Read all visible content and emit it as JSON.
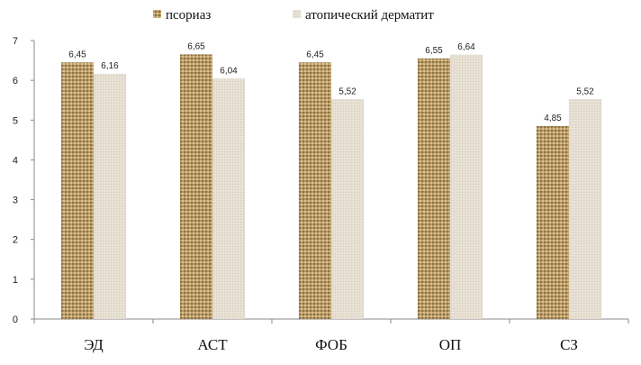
{
  "chart_data": {
    "type": "bar",
    "categories": [
      "ЭД",
      "АСТ",
      "ФОБ",
      "ОП",
      "СЗ"
    ],
    "series": [
      {
        "name": "псориаз",
        "values": [
          6.45,
          6.65,
          6.45,
          6.55,
          4.85
        ],
        "labels": [
          "6,45",
          "6,65",
          "6,45",
          "6,55",
          "4,85"
        ],
        "color": "#b89a68"
      },
      {
        "name": "атопический дерматит",
        "values": [
          6.16,
          6.04,
          5.52,
          6.64,
          5.52
        ],
        "labels": [
          "6,16",
          "6,04",
          "5,52",
          "6,64",
          "5,52"
        ],
        "color": "#e4dccd"
      }
    ],
    "ylim": [
      0,
      7
    ],
    "yticks": [
      "0",
      "1",
      "2",
      "3",
      "4",
      "5",
      "6",
      "7"
    ],
    "grid": false,
    "legend_position": "top"
  }
}
